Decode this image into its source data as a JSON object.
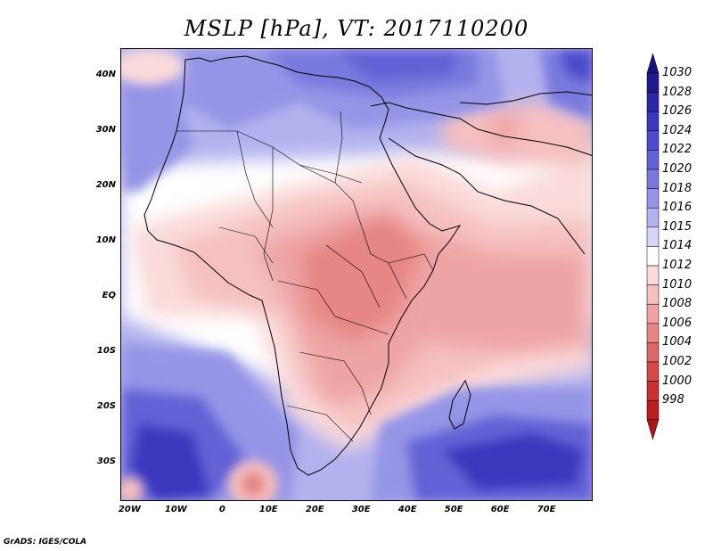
{
  "title": "MSLP [hPa], VT: 2017110200",
  "footer": "GrADS: IGES/COLA",
  "map": {
    "lon_range": [
      -22,
      80
    ],
    "lat_range": [
      -37,
      45
    ],
    "lat_ticks": [
      {
        "value": 40,
        "label": "40N"
      },
      {
        "value": 30,
        "label": "30N"
      },
      {
        "value": 20,
        "label": "20N"
      },
      {
        "value": 10,
        "label": "10N"
      },
      {
        "value": 0,
        "label": "EQ"
      },
      {
        "value": -10,
        "label": "10S"
      },
      {
        "value": -20,
        "label": "20S"
      },
      {
        "value": -30,
        "label": "30S"
      }
    ],
    "lon_ticks": [
      {
        "value": -20,
        "label": "20W"
      },
      {
        "value": -10,
        "label": "10W"
      },
      {
        "value": 0,
        "label": "0"
      },
      {
        "value": 10,
        "label": "10E"
      },
      {
        "value": 20,
        "label": "20E"
      },
      {
        "value": 30,
        "label": "30E"
      },
      {
        "value": 40,
        "label": "40E"
      },
      {
        "value": 50,
        "label": "50E"
      },
      {
        "value": 60,
        "label": "60E"
      },
      {
        "value": 70,
        "label": "70E"
      }
    ]
  },
  "colorbar": {
    "levels": [
      {
        "label": "1030",
        "color": "#1c1a8c"
      },
      {
        "label": "1028",
        "color": "#2a27a6"
      },
      {
        "label": "1026",
        "color": "#3a38bd"
      },
      {
        "label": "1024",
        "color": "#4d4bcc"
      },
      {
        "label": "1022",
        "color": "#6362d6"
      },
      {
        "label": "1020",
        "color": "#7a79de"
      },
      {
        "label": "1018",
        "color": "#9594e6"
      },
      {
        "label": "1016",
        "color": "#b3b2ee"
      },
      {
        "label": "1015",
        "color": "#d6d6f6"
      },
      {
        "label": "1014",
        "color": "#ffffff"
      },
      {
        "label": "1012",
        "color": "#fadada"
      },
      {
        "label": "1010",
        "color": "#f5c0c0"
      },
      {
        "label": "1008",
        "color": "#eea4a4"
      },
      {
        "label": "1006",
        "color": "#e68686"
      },
      {
        "label": "1004",
        "color": "#dd6868"
      },
      {
        "label": "1002",
        "color": "#d44a4a"
      },
      {
        "label": "1000",
        "color": "#c83232"
      },
      {
        "label": "998",
        "color": "#b82020"
      }
    ],
    "top_color": "#16137a",
    "bottom_color": "#a81818"
  },
  "fields": {
    "background": "#b3b2ee"
  }
}
